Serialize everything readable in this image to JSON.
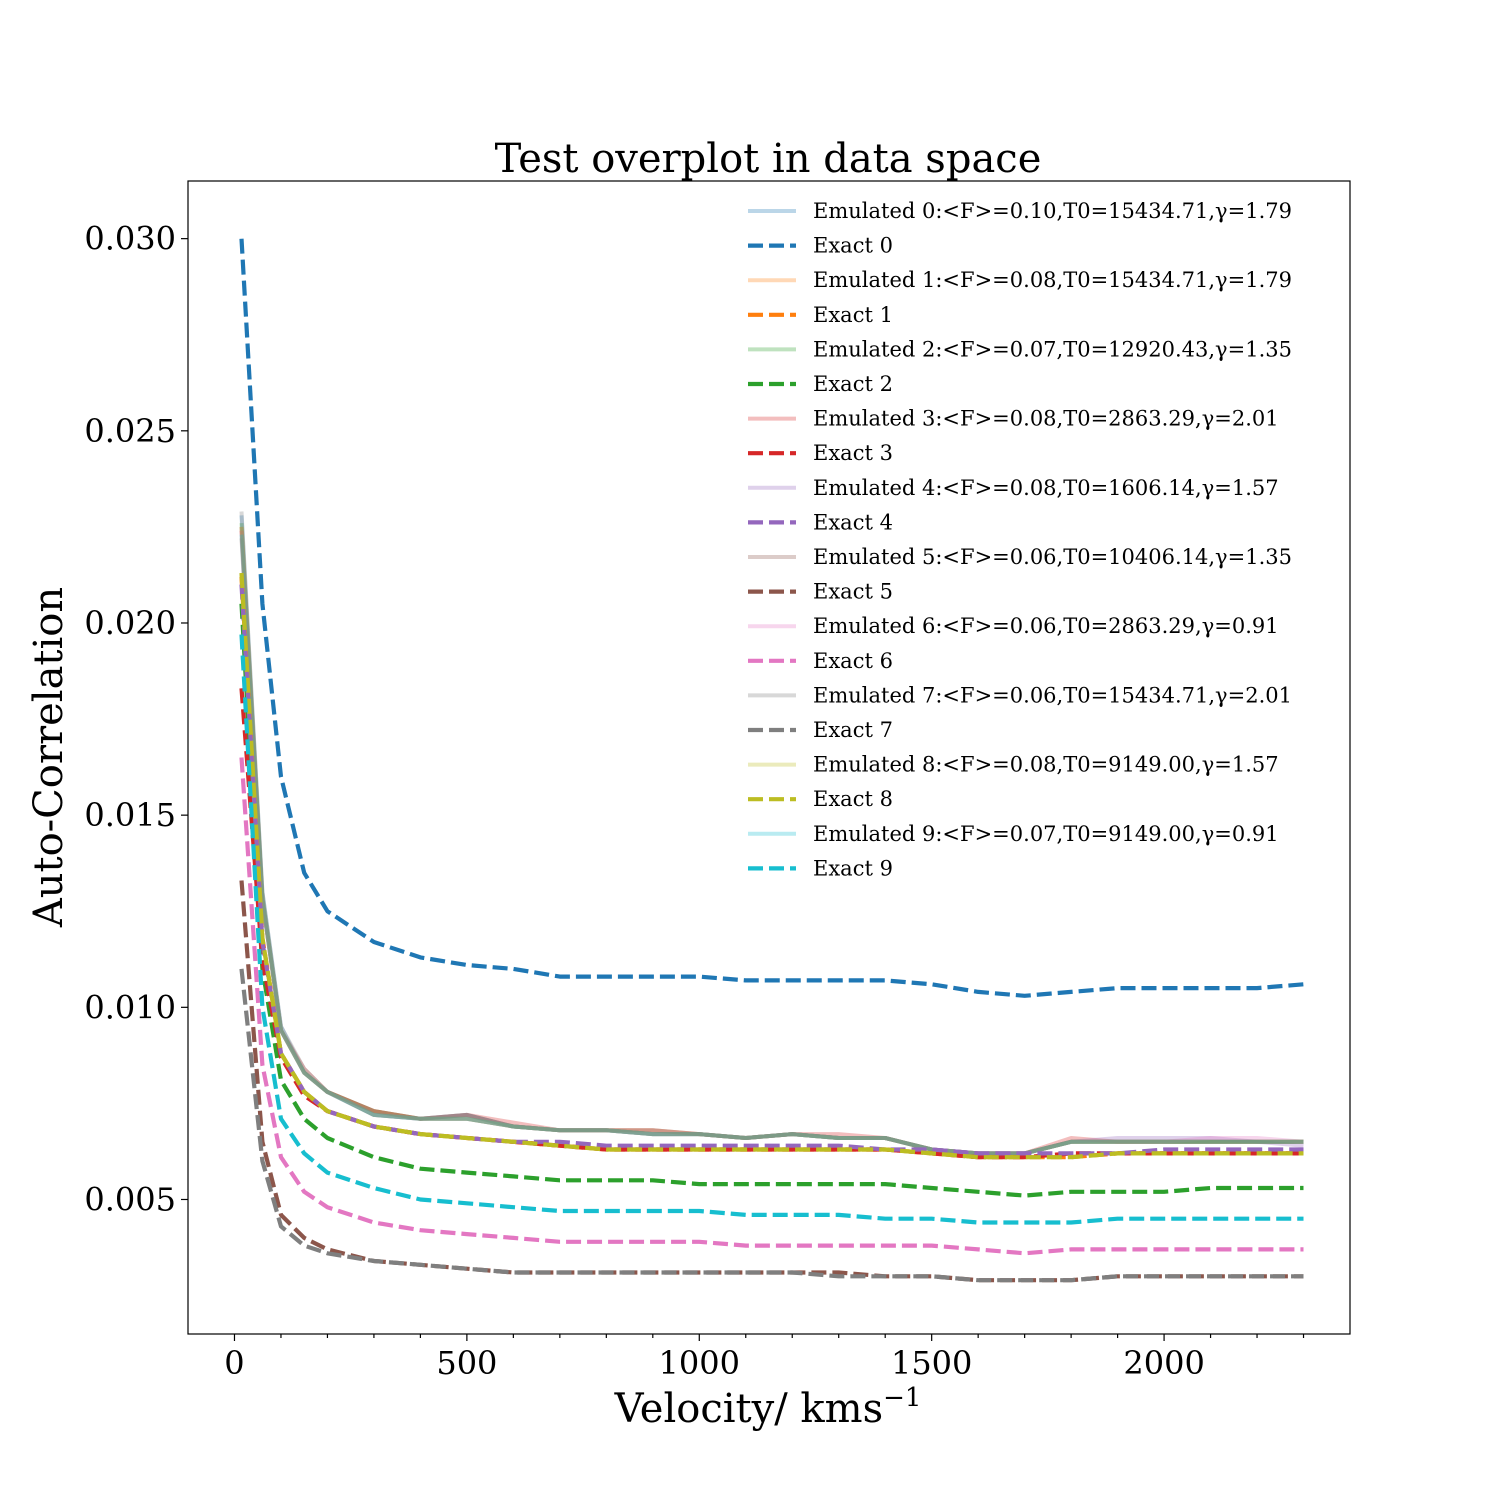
{
  "chart_data": {
    "type": "line",
    "title": "Test overplot in data space",
    "xlabel": "Velocity/ kms",
    "xlabel_sup": "−1",
    "ylabel": "Auto-Correlation",
    "xlim": [
      -100,
      2400
    ],
    "ylim": [
      0.0015,
      0.0315
    ],
    "xticks": [
      0,
      500,
      1000,
      1500,
      2000
    ],
    "xtick_labels": [
      "0",
      "500",
      "1000",
      "1500",
      "2000"
    ],
    "yticks": [
      0.005,
      0.01,
      0.015,
      0.02,
      0.025,
      0.03
    ],
    "ytick_labels": [
      "0.005",
      "0.010",
      "0.015",
      "0.020",
      "0.025",
      "0.030"
    ],
    "grid": false,
    "legend_position": "upper-right",
    "x": [
      15,
      60,
      100,
      150,
      200,
      300,
      400,
      500,
      600,
      700,
      800,
      900,
      1000,
      1100,
      1200,
      1300,
      1400,
      1500,
      1600,
      1700,
      1800,
      1900,
      2000,
      2100,
      2200,
      2300
    ],
    "series": [
      {
        "name": "Emulated 0",
        "legend_text": "Emulated 0:<F>=0.10,T0=15434.71,γ=1.79",
        "style": "solid",
        "color": "#1f77b4",
        "values": [
          0.0228,
          0.013,
          0.0095,
          0.0083,
          0.0078,
          0.0072,
          0.0071,
          0.0072,
          0.0069,
          0.0068,
          0.0068,
          0.0067,
          0.0067,
          0.0066,
          0.0067,
          0.0066,
          0.0066,
          0.0063,
          0.0062,
          0.0062,
          0.0065,
          0.0065,
          0.0065,
          0.0065,
          0.0065,
          0.0065
        ]
      },
      {
        "name": "Exact 0",
        "legend_text": "Exact 0",
        "style": "dashed",
        "color": "#1f77b4",
        "values": [
          0.03,
          0.0205,
          0.016,
          0.0135,
          0.0125,
          0.0117,
          0.0113,
          0.0111,
          0.011,
          0.0108,
          0.0108,
          0.0108,
          0.0108,
          0.0107,
          0.0107,
          0.0107,
          0.0107,
          0.0106,
          0.0104,
          0.0103,
          0.0104,
          0.0105,
          0.0105,
          0.0105,
          0.0105,
          0.0106
        ]
      },
      {
        "name": "Emulated 1",
        "legend_text": "Emulated 1:<F>=0.08,T0=15434.71,γ=1.79",
        "style": "solid",
        "color": "#ff7f0e",
        "values": [
          0.0225,
          0.0128,
          0.0094,
          0.0083,
          0.0078,
          0.0073,
          0.0071,
          0.0071,
          0.0069,
          0.0068,
          0.0068,
          0.0068,
          0.0067,
          0.0066,
          0.0067,
          0.0066,
          0.0066,
          0.0063,
          0.0062,
          0.0062,
          0.0065,
          0.0065,
          0.0065,
          0.0065,
          0.0065,
          0.0065
        ]
      },
      {
        "name": "Exact 1",
        "legend_text": "Exact 1",
        "style": "dashed",
        "color": "#ff7f0e",
        "values": [
          0.0212,
          0.0118,
          0.0088,
          0.0078,
          0.0073,
          0.0069,
          0.0067,
          0.0066,
          0.0065,
          0.0064,
          0.0063,
          0.0063,
          0.0063,
          0.0063,
          0.0063,
          0.0063,
          0.0063,
          0.0062,
          0.0061,
          0.0061,
          0.0061,
          0.0062,
          0.0062,
          0.0062,
          0.0062,
          0.0062
        ]
      },
      {
        "name": "Emulated 2",
        "legend_text": "Emulated 2:<F>=0.07,T0=12920.43,γ=1.35",
        "style": "solid",
        "color": "#2ca02c",
        "values": [
          0.0226,
          0.0129,
          0.0094,
          0.0083,
          0.0078,
          0.0073,
          0.0071,
          0.0071,
          0.0069,
          0.0068,
          0.0068,
          0.0067,
          0.0067,
          0.0066,
          0.0067,
          0.0066,
          0.0066,
          0.0063,
          0.0062,
          0.0062,
          0.0065,
          0.0065,
          0.0065,
          0.0065,
          0.0065,
          0.0065
        ]
      },
      {
        "name": "Exact 2",
        "legend_text": "Exact 2",
        "style": "dashed",
        "color": "#2ca02c",
        "values": [
          0.0205,
          0.011,
          0.0081,
          0.0071,
          0.0066,
          0.0061,
          0.0058,
          0.0057,
          0.0056,
          0.0055,
          0.0055,
          0.0055,
          0.0054,
          0.0054,
          0.0054,
          0.0054,
          0.0054,
          0.0053,
          0.0052,
          0.0051,
          0.0052,
          0.0052,
          0.0052,
          0.0053,
          0.0053,
          0.0053
        ]
      },
      {
        "name": "Emulated 3",
        "legend_text": "Emulated 3:<F>=0.08,T0=2863.29,γ=2.01",
        "style": "solid",
        "color": "#d62728",
        "values": [
          0.0224,
          0.0128,
          0.0094,
          0.0084,
          0.0078,
          0.0073,
          0.0071,
          0.0072,
          0.007,
          0.0068,
          0.0068,
          0.0068,
          0.0067,
          0.0066,
          0.0067,
          0.0067,
          0.0066,
          0.0063,
          0.0062,
          0.0062,
          0.0066,
          0.0065,
          0.0065,
          0.0065,
          0.0065,
          0.0065
        ]
      },
      {
        "name": "Exact 3",
        "legend_text": "Exact 3",
        "style": "dashed",
        "color": "#d62728",
        "values": [
          0.0183,
          0.0112,
          0.0087,
          0.0077,
          0.0073,
          0.0069,
          0.0067,
          0.0066,
          0.0065,
          0.0064,
          0.0063,
          0.0063,
          0.0063,
          0.0063,
          0.0063,
          0.0063,
          0.0063,
          0.0062,
          0.0061,
          0.0061,
          0.0062,
          0.0062,
          0.0062,
          0.0062,
          0.0062,
          0.0062
        ]
      },
      {
        "name": "Emulated 4",
        "legend_text": "Emulated 4:<F>=0.08,T0=1606.14,γ=1.57",
        "style": "solid",
        "color": "#9467bd",
        "values": [
          0.0225,
          0.0128,
          0.0094,
          0.0083,
          0.0078,
          0.0072,
          0.0071,
          0.0071,
          0.0069,
          0.0068,
          0.0068,
          0.0067,
          0.0067,
          0.0066,
          0.0067,
          0.0066,
          0.0066,
          0.0063,
          0.0062,
          0.0062,
          0.0065,
          0.0066,
          0.0066,
          0.0066,
          0.0065,
          0.0064
        ]
      },
      {
        "name": "Exact 4",
        "legend_text": "Exact 4",
        "style": "dashed",
        "color": "#9467bd",
        "values": [
          0.021,
          0.0117,
          0.0088,
          0.0078,
          0.0073,
          0.0069,
          0.0067,
          0.0066,
          0.0065,
          0.0065,
          0.0064,
          0.0064,
          0.0064,
          0.0064,
          0.0064,
          0.0064,
          0.0063,
          0.0063,
          0.0062,
          0.0062,
          0.0062,
          0.0062,
          0.0063,
          0.0063,
          0.0063,
          0.0063
        ]
      },
      {
        "name": "Emulated 5",
        "legend_text": "Emulated 5:<F>=0.06,T0=10406.14,γ=1.35",
        "style": "solid",
        "color": "#8c564b",
        "values": [
          0.0222,
          0.0128,
          0.0094,
          0.0083,
          0.0078,
          0.0073,
          0.0071,
          0.0072,
          0.0069,
          0.0068,
          0.0068,
          0.0067,
          0.0067,
          0.0066,
          0.0067,
          0.0066,
          0.0066,
          0.0063,
          0.0062,
          0.0062,
          0.0065,
          0.0065,
          0.0065,
          0.0065,
          0.0065,
          0.0065
        ]
      },
      {
        "name": "Exact 5",
        "legend_text": "Exact 5",
        "style": "dashed",
        "color": "#8c564b",
        "values": [
          0.0133,
          0.0065,
          0.0046,
          0.004,
          0.0037,
          0.0034,
          0.0033,
          0.0032,
          0.0031,
          0.0031,
          0.0031,
          0.0031,
          0.0031,
          0.0031,
          0.0031,
          0.0031,
          0.003,
          0.003,
          0.0029,
          0.0029,
          0.0029,
          0.003,
          0.003,
          0.003,
          0.003,
          0.003
        ]
      },
      {
        "name": "Emulated 6",
        "legend_text": "Emulated 6:<F>=0.06,T0=2863.29,γ=0.91",
        "style": "solid",
        "color": "#e377c2",
        "values": [
          0.0224,
          0.0128,
          0.0094,
          0.0083,
          0.0078,
          0.0072,
          0.0071,
          0.0071,
          0.0069,
          0.0068,
          0.0068,
          0.0067,
          0.0067,
          0.0066,
          0.0067,
          0.0066,
          0.0066,
          0.0063,
          0.0062,
          0.0062,
          0.0065,
          0.0065,
          0.0065,
          0.0066,
          0.0066,
          0.0065
        ]
      },
      {
        "name": "Exact 6",
        "legend_text": "Exact 6",
        "style": "dashed",
        "color": "#e377c2",
        "values": [
          0.0165,
          0.0085,
          0.0061,
          0.0052,
          0.0048,
          0.0044,
          0.0042,
          0.0041,
          0.004,
          0.0039,
          0.0039,
          0.0039,
          0.0039,
          0.0038,
          0.0038,
          0.0038,
          0.0038,
          0.0038,
          0.0037,
          0.0036,
          0.0037,
          0.0037,
          0.0037,
          0.0037,
          0.0037,
          0.0037
        ]
      },
      {
        "name": "Emulated 7",
        "legend_text": "Emulated 7:<F>=0.06,T0=15434.71,γ=2.01",
        "style": "solid",
        "color": "#7f7f7f",
        "values": [
          0.0229,
          0.013,
          0.0095,
          0.0084,
          0.0078,
          0.0072,
          0.0071,
          0.0072,
          0.0069,
          0.0068,
          0.0068,
          0.0068,
          0.0067,
          0.0066,
          0.0067,
          0.0066,
          0.0066,
          0.0063,
          0.0062,
          0.0062,
          0.0065,
          0.0065,
          0.0065,
          0.0065,
          0.0065,
          0.0065
        ]
      },
      {
        "name": "Exact 7",
        "legend_text": "Exact 7",
        "style": "dashed",
        "color": "#7f7f7f",
        "values": [
          0.011,
          0.006,
          0.0043,
          0.0038,
          0.0036,
          0.0034,
          0.0033,
          0.0032,
          0.0031,
          0.0031,
          0.0031,
          0.0031,
          0.0031,
          0.0031,
          0.0031,
          0.003,
          0.003,
          0.003,
          0.0029,
          0.0029,
          0.0029,
          0.003,
          0.003,
          0.003,
          0.003,
          0.003
        ]
      },
      {
        "name": "Emulated 8",
        "legend_text": "Emulated 8:<F>=0.08,T0=9149.00,γ=1.57",
        "style": "solid",
        "color": "#bcbd22",
        "values": [
          0.0225,
          0.0128,
          0.0094,
          0.0083,
          0.0078,
          0.0072,
          0.0071,
          0.0071,
          0.0069,
          0.0068,
          0.0068,
          0.0067,
          0.0067,
          0.0066,
          0.0067,
          0.0066,
          0.0066,
          0.0063,
          0.0062,
          0.0062,
          0.0065,
          0.0065,
          0.0065,
          0.0065,
          0.0065,
          0.0065
        ]
      },
      {
        "name": "Exact 8",
        "legend_text": "Exact 8",
        "style": "dashed",
        "color": "#bcbd22",
        "values": [
          0.0213,
          0.0118,
          0.0088,
          0.0078,
          0.0073,
          0.0069,
          0.0067,
          0.0066,
          0.0065,
          0.0064,
          0.0063,
          0.0063,
          0.0063,
          0.0063,
          0.0063,
          0.0063,
          0.0063,
          0.0062,
          0.0061,
          0.0061,
          0.0061,
          0.0062,
          0.0062,
          0.0062,
          0.0062,
          0.0062
        ]
      },
      {
        "name": "Emulated 9",
        "legend_text": "Emulated 9:<F>=0.07,T0=9149.00,γ=0.91",
        "style": "solid",
        "color": "#17becf",
        "values": [
          0.0223,
          0.0128,
          0.0094,
          0.0083,
          0.0078,
          0.0072,
          0.0071,
          0.0071,
          0.0069,
          0.0068,
          0.0068,
          0.0067,
          0.0067,
          0.0066,
          0.0067,
          0.0066,
          0.0066,
          0.0063,
          0.0062,
          0.0062,
          0.0065,
          0.0065,
          0.0065,
          0.0065,
          0.0065,
          0.0065
        ]
      },
      {
        "name": "Exact 9",
        "legend_text": "Exact 9",
        "style": "dashed",
        "color": "#17becf",
        "values": [
          0.0197,
          0.01,
          0.0071,
          0.0062,
          0.0057,
          0.0053,
          0.005,
          0.0049,
          0.0048,
          0.0047,
          0.0047,
          0.0047,
          0.0047,
          0.0046,
          0.0046,
          0.0046,
          0.0045,
          0.0045,
          0.0044,
          0.0044,
          0.0044,
          0.0045,
          0.0045,
          0.0045,
          0.0045,
          0.0045
        ]
      }
    ]
  }
}
